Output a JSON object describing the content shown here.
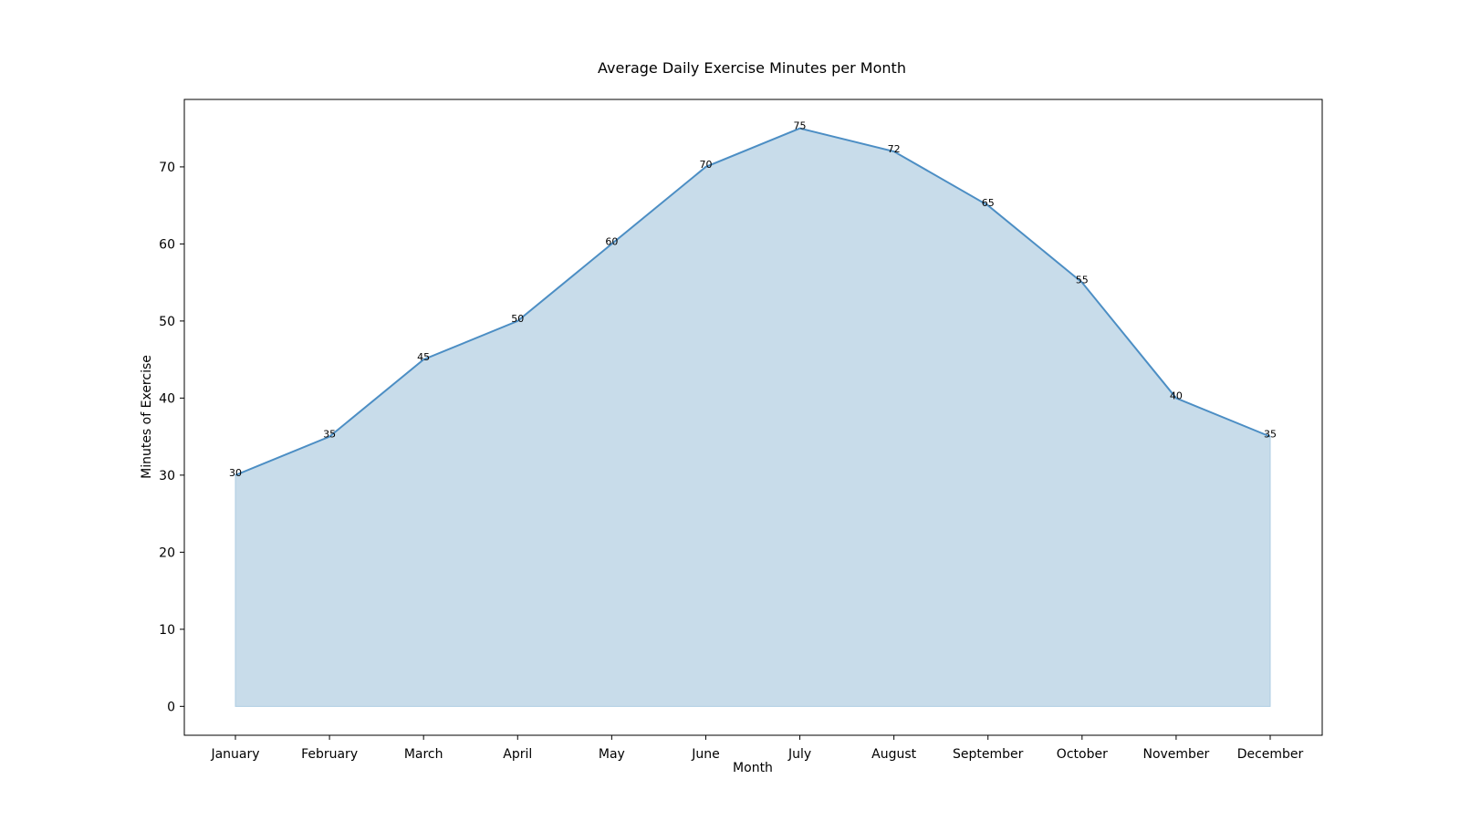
{
  "chart_data": {
    "type": "area",
    "title": "Average Daily Exercise Minutes per Month",
    "xlabel": "Month",
    "ylabel": "Minutes of Exercise",
    "categories": [
      "January",
      "February",
      "March",
      "April",
      "May",
      "June",
      "July",
      "August",
      "September",
      "October",
      "November",
      "December"
    ],
    "values": [
      30,
      35,
      45,
      50,
      60,
      70,
      75,
      72,
      65,
      55,
      40,
      35
    ],
    "ylim": [
      -3.75,
      78.75
    ],
    "yticks": [
      0,
      10,
      20,
      30,
      40,
      50,
      60,
      70
    ],
    "grid": false,
    "legend": "none",
    "colors": {
      "line": "#4c8ec4",
      "fill": "#c8dcea",
      "fill_edge": "#aecde3"
    }
  }
}
